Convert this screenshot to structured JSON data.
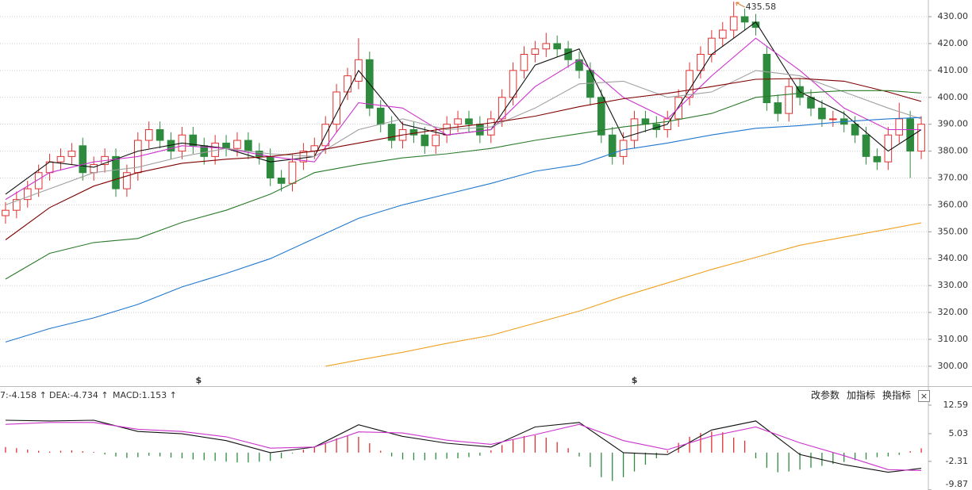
{
  "chart_data": [
    {
      "type": "candlestick",
      "open": [
        356,
        358,
        362,
        366,
        372,
        376,
        378,
        382,
        372,
        375,
        378,
        366,
        372,
        384,
        388,
        384,
        380,
        386,
        382,
        378,
        383,
        381,
        384,
        380,
        378,
        370,
        368,
        376,
        380,
        382,
        390,
        402,
        406,
        414,
        396,
        390,
        384,
        388,
        386,
        382,
        386,
        390,
        392,
        390,
        386,
        392,
        400,
        410,
        416,
        418,
        420,
        418,
        414,
        410,
        400,
        386,
        378,
        384,
        392,
        390,
        388,
        392,
        400,
        410,
        416,
        422,
        425,
        430,
        428,
        416,
        398,
        394,
        404,
        400,
        396,
        392,
        392,
        390,
        386,
        378,
        376,
        386,
        392,
        380
      ],
      "high": [
        361,
        365,
        369,
        375,
        379,
        381,
        383,
        385,
        378,
        381,
        381,
        375,
        387,
        391,
        391,
        387,
        389,
        389,
        385,
        386,
        386,
        387,
        387,
        383,
        381,
        373,
        379,
        383,
        385,
        393,
        405,
        411,
        422,
        417,
        399,
        393,
        391,
        391,
        389,
        389,
        393,
        395,
        395,
        393,
        395,
        403,
        413,
        419,
        421,
        424,
        423,
        421,
        417,
        413,
        403,
        389,
        387,
        395,
        395,
        393,
        395,
        403,
        413,
        419,
        425,
        428,
        435.58,
        433,
        431,
        419,
        401,
        407,
        407,
        403,
        399,
        395,
        395,
        393,
        389,
        381,
        389,
        398,
        395,
        393
      ],
      "low": [
        353,
        355,
        359,
        363,
        369,
        373,
        375,
        369,
        369,
        372,
        363,
        363,
        369,
        381,
        381,
        377,
        377,
        379,
        375,
        375,
        378,
        378,
        377,
        375,
        367,
        365,
        365,
        373,
        377,
        379,
        387,
        399,
        403,
        393,
        387,
        381,
        381,
        383,
        379,
        379,
        383,
        387,
        387,
        383,
        383,
        389,
        397,
        407,
        413,
        415,
        415,
        411,
        407,
        397,
        383,
        375,
        375,
        381,
        387,
        385,
        385,
        389,
        397,
        407,
        413,
        419,
        422,
        425,
        423,
        395,
        391,
        391,
        397,
        393,
        389,
        389,
        387,
        383,
        375,
        373,
        373,
        383,
        370,
        377
      ],
      "close": [
        358,
        362,
        366,
        372,
        376,
        378,
        380,
        372,
        375,
        378,
        366,
        372,
        384,
        388,
        384,
        380,
        386,
        382,
        378,
        383,
        381,
        384,
        380,
        378,
        370,
        368,
        376,
        380,
        382,
        390,
        402,
        408,
        414,
        396,
        390,
        384,
        388,
        386,
        382,
        386,
        390,
        392,
        390,
        386,
        392,
        400,
        410,
        416,
        418,
        420,
        418,
        414,
        410,
        400,
        386,
        378,
        384,
        392,
        390,
        388,
        392,
        400,
        410,
        416,
        422,
        425,
        430,
        428,
        426,
        398,
        394,
        404,
        400,
        396,
        392,
        392,
        390,
        386,
        378,
        376,
        386,
        392,
        380,
        390
      ],
      "up_color": "#e03030",
      "down_color": "#2e8b3e",
      "xlim": [
        -0.5,
        83.5
      ],
      "ylim": [
        292.6,
        436.2
      ],
      "yticks": [
        {
          "value": 300,
          "label": "300.00"
        },
        {
          "value": 310,
          "label": "310.00"
        },
        {
          "value": 320,
          "label": "320.00"
        },
        {
          "value": 330,
          "label": "330.00"
        },
        {
          "value": 340,
          "label": "340.00"
        },
        {
          "value": 350,
          "label": "350.00"
        },
        {
          "value": 360,
          "label": "360.00"
        },
        {
          "value": 370,
          "label": "370.00"
        },
        {
          "value": 380,
          "label": "380.00"
        },
        {
          "value": 390,
          "label": "390.00"
        },
        {
          "value": 400,
          "label": "400.00"
        },
        {
          "value": 410,
          "label": "410.00"
        },
        {
          "value": 420,
          "label": "420.00"
        },
        {
          "value": 430,
          "label": "430.00"
        }
      ],
      "grid": true,
      "series": [
        {
          "color": "#111111",
          "x": [
            0,
            4,
            8,
            12,
            16,
            20,
            24,
            28,
            32,
            36,
            40,
            44,
            48,
            52,
            56,
            60,
            64,
            68,
            72,
            76,
            80,
            83
          ],
          "values": [
            364,
            376,
            374,
            380,
            383,
            381,
            376,
            378,
            410,
            390,
            386,
            388,
            412,
            418,
            385,
            390,
            416,
            428,
            402,
            394,
            380,
            388
          ]
        },
        {
          "color": "#cc33cc",
          "x": [
            0,
            4,
            8,
            12,
            16,
            20,
            24,
            28,
            32,
            36,
            40,
            44,
            48,
            52,
            56,
            60,
            64,
            68,
            72,
            76,
            80,
            83
          ],
          "values": [
            362,
            372,
            376,
            378,
            382,
            381,
            378,
            376,
            398,
            396,
            386,
            388,
            404,
            414,
            400,
            392,
            408,
            422,
            410,
            396,
            388,
            388
          ]
        },
        {
          "color": "#a0a0a0",
          "x": [
            0,
            4,
            8,
            12,
            16,
            20,
            24,
            28,
            32,
            36,
            40,
            44,
            48,
            52,
            56,
            60,
            64,
            68,
            72,
            76,
            80,
            83
          ],
          "values": [
            360,
            366,
            372,
            374,
            378,
            381,
            379,
            378,
            388,
            392,
            388,
            389,
            396,
            405,
            406,
            400,
            402,
            410,
            408,
            402,
            396,
            392
          ]
        },
        {
          "color": "#800000",
          "x": [
            0,
            4,
            8,
            12,
            16,
            20,
            24,
            28,
            32,
            36,
            40,
            44,
            48,
            52,
            56,
            60,
            64,
            68,
            72,
            76,
            80,
            83
          ],
          "values": [
            347,
            359,
            367,
            372,
            375.5,
            377,
            378,
            380,
            383,
            386,
            388.5,
            390.5,
            393,
            396.5,
            399.5,
            401.5,
            404,
            406.7,
            407,
            406,
            402,
            398.5
          ]
        },
        {
          "color": "#2a7a2a",
          "x": [
            0,
            4,
            8,
            12,
            16,
            20,
            24,
            28,
            32,
            36,
            40,
            44,
            48,
            52,
            56,
            60,
            64,
            68,
            72,
            76,
            80,
            83
          ],
          "values": [
            332.4,
            342,
            346,
            347.5,
            353.5,
            358,
            364,
            372,
            375,
            377.5,
            379,
            381,
            384,
            386.5,
            389,
            391,
            394,
            400,
            401.5,
            402.5,
            402.5,
            401.6
          ]
        },
        {
          "color": "#1f77d0",
          "x": [
            0,
            4,
            8,
            12,
            16,
            20,
            24,
            28,
            32,
            36,
            40,
            44,
            48,
            52,
            56,
            60,
            64,
            68,
            72,
            76,
            80,
            83
          ],
          "values": [
            309,
            314,
            318,
            323,
            329.5,
            334.5,
            340,
            347.5,
            355,
            360,
            364,
            368,
            372.5,
            375,
            380.5,
            383,
            386,
            388.5,
            389.5,
            391,
            392,
            392.5
          ]
        },
        {
          "color": "#f0a020",
          "x": [
            29,
            32,
            36,
            40,
            44,
            48,
            52,
            56,
            60,
            64,
            68,
            72,
            76,
            80,
            83
          ],
          "values": [
            300,
            302.3,
            305.2,
            308.5,
            311.5,
            316,
            320.5,
            326,
            331,
            336,
            340.5,
            345,
            348,
            351,
            353.3
          ]
        }
      ],
      "annotations": [
        {
          "text": "435.58",
          "x": 66,
          "y": 435.58,
          "color": "#e07020"
        },
        {
          "text": "$",
          "x": 17.5,
          "color": "#d00000"
        },
        {
          "text": "$",
          "x": 57,
          "color": "#d00000"
        }
      ]
    },
    {
      "type": "macd",
      "header": [
        {
          "text": "7:-4.158 ↑",
          "color": "#111111"
        },
        {
          "text": "DEA:-4.734 ↑",
          "color": "#cc33cc"
        },
        {
          "text": "MACD:1.153 ↑",
          "color": "#555555"
        }
      ],
      "x": [
        0,
        4,
        8,
        12,
        16,
        20,
        24,
        28,
        32,
        36,
        40,
        44,
        48,
        52,
        56,
        60,
        64,
        68,
        72,
        76,
        80,
        83
      ],
      "series": [
        {
          "color": "#111111",
          "values": [
            8.6,
            8.4,
            8.6,
            5.6,
            5.0,
            3.2,
            0,
            1.5,
            7.4,
            4.3,
            2.5,
            1.5,
            6.8,
            8.0,
            0,
            -0.5,
            6.0,
            8.4,
            -0.5,
            -3.2,
            -5.2,
            -4.158
          ]
        },
        {
          "color": "#cc33cc",
          "values": [
            7.5,
            8,
            8.0,
            6.2,
            5.6,
            4.2,
            1.2,
            1.5,
            5.5,
            5.2,
            3.3,
            2.2,
            4.8,
            7.5,
            3.2,
            0.8,
            4.4,
            6.8,
            2.6,
            -0.8,
            -4.5,
            -4.734
          ]
        }
      ],
      "histogram": [
        1.5,
        1.2,
        0.8,
        0.5,
        0.3,
        0.5,
        0.6,
        0.4,
        0.2,
        -0.5,
        -1.0,
        -1.4,
        -1.2,
        -0.8,
        -1.0,
        -1.3,
        -1.5,
        -1.8,
        -2.0,
        -2.2,
        -2.4,
        -2.6,
        -2.6,
        -2.4,
        -2.2,
        -1.5,
        -0.2,
        0.8,
        1.6,
        2.6,
        3.8,
        4.5,
        4.2,
        2.5,
        0.5,
        -1.0,
        -1.8,
        -2.0,
        -2.0,
        -1.8,
        -1.6,
        -1.5,
        -1.2,
        -0.8,
        0.6,
        2.0,
        3.4,
        4.4,
        4.6,
        4.0,
        2.8,
        1.2,
        -1.0,
        -3.8,
        -6.5,
        -7.5,
        -6.5,
        -5.0,
        -3.2,
        -1.5,
        0.5,
        2.6,
        4.2,
        5.2,
        5.6,
        5.4,
        4.0,
        3.2,
        -1.5,
        -4.0,
        -5.2,
        -5.0,
        -4.5,
        -4.0,
        -3.5,
        -3.0,
        -2.5,
        -2.0,
        -1.8,
        -1.2,
        -1.0,
        -0.6,
        0.4,
        1.153
      ],
      "up_color": "#e03030",
      "down_color": "#2e8b3e",
      "xlim": [
        -0.5,
        83.5
      ],
      "ylim": [
        -9.9,
        17.0
      ],
      "yticks": [
        12.59,
        5.03,
        -2.31,
        -9.87
      ]
    }
  ],
  "toolbar": {
    "buttons": [
      "改参数",
      "加指标",
      "换指标"
    ],
    "close": "×"
  }
}
